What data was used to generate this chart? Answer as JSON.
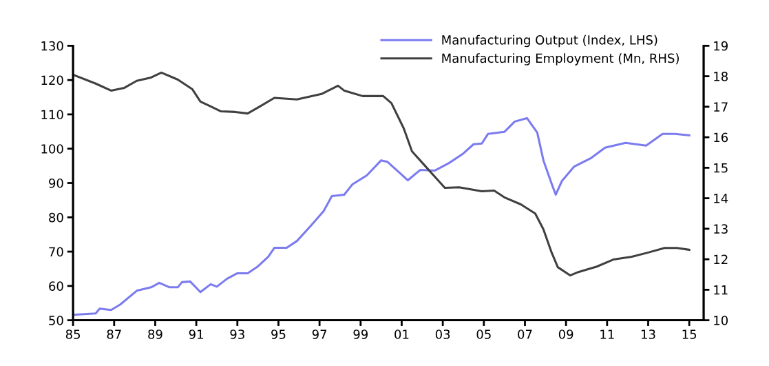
{
  "chart_data": {
    "type": "line",
    "series": [
      {
        "name": "Manufacturing Output (Index, LHS)",
        "color": "#7b7bf0",
        "axis": "y",
        "x": [
          1985.0,
          1986.1,
          1986.3,
          1986.85,
          1987.3,
          1988.1,
          1988.8,
          1989.2,
          1989.7,
          1990.1,
          1990.3,
          1990.7,
          1991.2,
          1991.7,
          1992.0,
          1992.5,
          1993.0,
          1993.5,
          1994.0,
          1994.5,
          1994.8,
          1995.4,
          1995.9,
          1996.6,
          1997.2,
          1997.6,
          1998.2,
          1998.6,
          1999.3,
          2000.0,
          2000.3,
          2001.3,
          2001.9,
          2002.6,
          2003.3,
          2004.0,
          2004.5,
          2004.9,
          2005.2,
          2006.0,
          2006.5,
          2007.1,
          2007.6,
          2007.9,
          2008.3,
          2008.5,
          2008.8,
          2009.4,
          2010.2,
          2010.9,
          2011.9,
          2012.9,
          2013.7,
          2014.3,
          2015.0
        ],
        "values": [
          51.6,
          52.0,
          53.4,
          53.0,
          54.6,
          58.6,
          59.6,
          60.9,
          59.6,
          59.6,
          61.1,
          61.3,
          58.2,
          60.5,
          59.8,
          62.1,
          63.7,
          63.7,
          65.7,
          68.5,
          71.1,
          71.1,
          73.1,
          77.7,
          81.8,
          86.2,
          86.6,
          89.6,
          92.2,
          96.6,
          96.2,
          90.8,
          93.8,
          93.6,
          95.8,
          98.6,
          101.3,
          101.5,
          104.3,
          104.9,
          107.9,
          108.9,
          104.7,
          96.6,
          89.8,
          86.6,
          90.6,
          94.8,
          97.2,
          100.3,
          101.7,
          100.9,
          104.3,
          104.3,
          103.9
        ]
      },
      {
        "name": "Manufacturing Employment (Mn, RHS)",
        "color": "#404040",
        "axis": "y2",
        "x": [
          1985.0,
          1986.1,
          1986.85,
          1987.5,
          1988.1,
          1988.8,
          1989.3,
          1990.1,
          1990.8,
          1991.2,
          1991.7,
          1992.2,
          1992.9,
          1993.5,
          1994.1,
          1994.8,
          1995.9,
          1997.1,
          1997.9,
          1998.2,
          1999.1,
          2000.1,
          2000.5,
          2001.1,
          2001.5,
          2002.1,
          2002.7,
          2003.1,
          2003.8,
          2004.9,
          2005.5,
          2006.0,
          2006.8,
          2007.5,
          2007.9,
          2008.3,
          2008.6,
          2009.2,
          2009.6,
          2010.5,
          2011.3,
          2012.2,
          2013.0,
          2013.8,
          2014.4,
          2015.0
        ],
        "values": [
          18.05,
          17.76,
          17.53,
          17.62,
          17.85,
          17.96,
          18.12,
          17.89,
          17.58,
          17.17,
          17.01,
          16.85,
          16.83,
          16.78,
          17.01,
          17.29,
          17.24,
          17.42,
          17.69,
          17.53,
          17.35,
          17.35,
          17.12,
          16.29,
          15.54,
          15.09,
          14.64,
          14.34,
          14.36,
          14.23,
          14.25,
          14.03,
          13.8,
          13.5,
          12.98,
          12.22,
          11.74,
          11.47,
          11.58,
          11.76,
          11.99,
          12.08,
          12.22,
          12.37,
          12.37,
          12.31
        ]
      }
    ],
    "xlim": [
      1985,
      2015.7
    ],
    "xticks": [
      {
        "value": 1985,
        "label": "85"
      },
      {
        "value": 1987,
        "label": "87"
      },
      {
        "value": 1989,
        "label": "89"
      },
      {
        "value": 1991,
        "label": "91"
      },
      {
        "value": 1993,
        "label": "93"
      },
      {
        "value": 1995,
        "label": "95"
      },
      {
        "value": 1997,
        "label": "97"
      },
      {
        "value": 1999,
        "label": "99"
      },
      {
        "value": 2001,
        "label": "01"
      },
      {
        "value": 2003,
        "label": "03"
      },
      {
        "value": 2005,
        "label": "05"
      },
      {
        "value": 2007,
        "label": "07"
      },
      {
        "value": 2009,
        "label": "09"
      },
      {
        "value": 2011,
        "label": "11"
      },
      {
        "value": 2013,
        "label": "13"
      },
      {
        "value": 2015,
        "label": "15"
      }
    ],
    "ylim": [
      50,
      130
    ],
    "yticks": [
      50,
      60,
      70,
      80,
      90,
      100,
      110,
      120,
      130
    ],
    "y2lim": [
      10,
      19
    ],
    "y2ticks": [
      10,
      11,
      12,
      13,
      14,
      15,
      16,
      17,
      18,
      19
    ],
    "grid": false,
    "legend": "top right",
    "marker": "none",
    "line_style": "solid"
  }
}
